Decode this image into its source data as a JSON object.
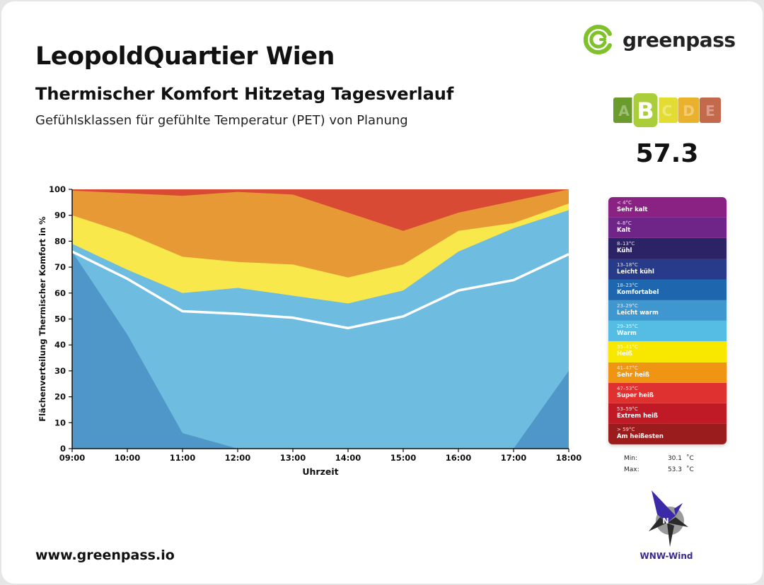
{
  "header": {
    "title": "LeopoldQuartier Wien",
    "subtitle": "Thermischer Komfort Hitzetag Tagesverlauf",
    "description": "Gefühlsklassen für gefühlte Temperatur (PET) von Planung"
  },
  "brand": {
    "name": "greenpass",
    "accent": "#7fc12a",
    "website": "www.greenpass.io"
  },
  "rating": {
    "active": "B",
    "grades": [
      {
        "letter": "A",
        "color": "#6a9b2c"
      },
      {
        "letter": "B",
        "color": "#a9ce3a"
      },
      {
        "letter": "C",
        "color": "#e3dc33"
      },
      {
        "letter": "D",
        "color": "#e9b12e"
      },
      {
        "letter": "E",
        "color": "#c36a4d"
      }
    ],
    "score": "57.3"
  },
  "chart_data": {
    "type": "area",
    "xlabel": "Uhrzeit",
    "ylabel": "Flächenverteilung Thermischer Komfort in %",
    "ylim": [
      0,
      100
    ],
    "yticks": [
      0,
      10,
      20,
      30,
      40,
      50,
      60,
      70,
      80,
      90,
      100
    ],
    "x": [
      "09:00",
      "10:00",
      "11:00",
      "12:00",
      "13:00",
      "14:00",
      "15:00",
      "16:00",
      "17:00",
      "18:00"
    ],
    "stacked_upper_bounds": [
      {
        "color": "#4f97c9",
        "values": [
          76,
          44,
          6,
          0,
          0,
          0,
          0,
          0,
          0,
          30
        ]
      },
      {
        "color": "#6ebde0",
        "values": [
          79,
          69,
          60,
          62,
          59,
          56,
          61,
          76,
          85,
          92
        ]
      },
      {
        "color": "#f9e84c",
        "values": [
          90,
          83,
          74,
          72,
          71,
          66,
          71,
          84,
          87,
          94.5
        ]
      },
      {
        "color": "#e79936",
        "values": [
          99.5,
          98.5,
          97.5,
          99,
          98,
          91,
          84,
          91,
          95.5,
          100
        ]
      },
      {
        "color": "#d94a34",
        "values": [
          100,
          100,
          100,
          100,
          100,
          100,
          100,
          100,
          100,
          100
        ]
      }
    ],
    "line": {
      "color": "#ffffff",
      "values": [
        76,
        65.5,
        53,
        52,
        50.5,
        46.5,
        51,
        61,
        65,
        75
      ]
    },
    "grid": false
  },
  "legend": [
    {
      "range": "< 4°C",
      "label": "Sehr kalt",
      "color": "#8a2283"
    },
    {
      "range": "4–8°C",
      "label": "Kalt",
      "color": "#6e2587"
    },
    {
      "range": "8–13°C",
      "label": "Kühl",
      "color": "#2c2266"
    },
    {
      "range": "13–18°C",
      "label": "Leicht kühl",
      "color": "#283a8a"
    },
    {
      "range": "18–23°C",
      "label": "Komfortabel",
      "color": "#1e67ae"
    },
    {
      "range": "23–29°C",
      "label": "Leicht warm",
      "color": "#3f97d0"
    },
    {
      "range": "29–35°C",
      "label": "Warm",
      "color": "#55bde3"
    },
    {
      "range": "35–41°C",
      "label": "Heiß",
      "color": "#f8e800"
    },
    {
      "range": "41–47°C",
      "label": "Sehr heiß",
      "color": "#f09413"
    },
    {
      "range": "47–53°C",
      "label": "Super heiß",
      "color": "#e03131"
    },
    {
      "range": "53–59°C",
      "label": "Extrem heiß",
      "color": "#c01a27"
    },
    {
      "range": "> 59°C",
      "label": "Am heißesten",
      "color": "#9b1c1c"
    }
  ],
  "stats": {
    "min_label": "Min:",
    "min_value": "30.1",
    "max_label": "Max:",
    "max_value": "53.3",
    "unit": "˚C"
  },
  "wind": {
    "letter": "N",
    "label": "WNW-Wind"
  }
}
